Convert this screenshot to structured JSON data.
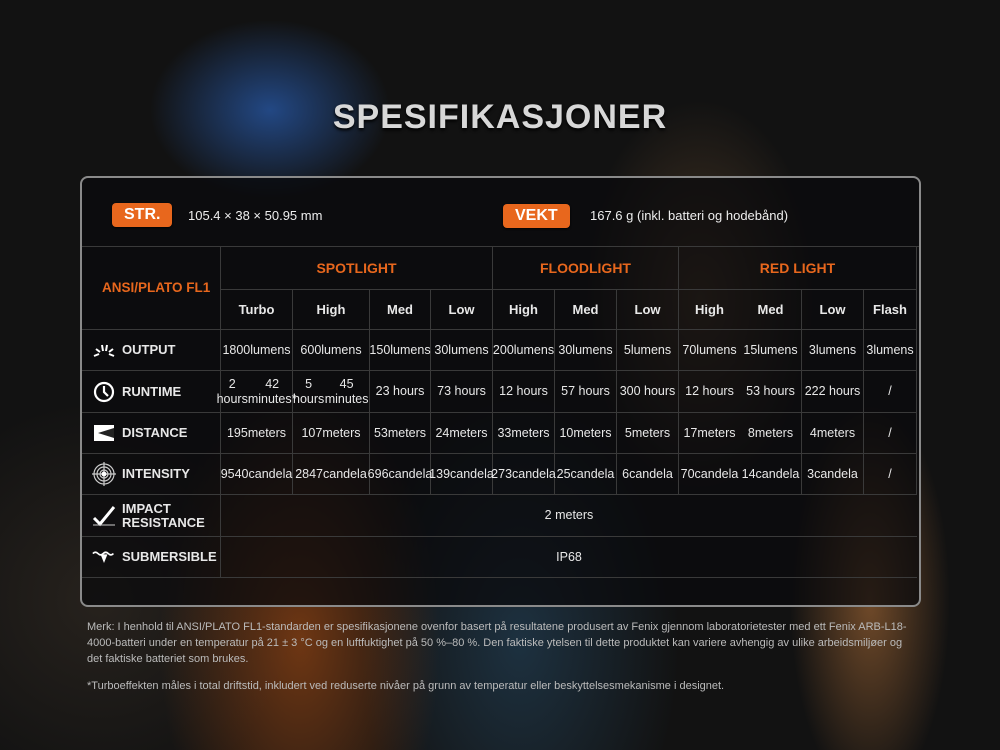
{
  "title": "SPESIFIKASJONER",
  "size": {
    "label": "STR.",
    "value": "105.4 × 38 × 50.95 mm"
  },
  "weight": {
    "label": "VEKT",
    "value": "167.6 g (inkl. batteri og hodebånd)"
  },
  "table": {
    "standard": [
      "ANSI/",
      "PLATO FL1"
    ],
    "groups": [
      "SPOTLIGHT",
      "FLOODLIGHT",
      "RED LIGHT"
    ],
    "modes": [
      "Turbo",
      "High",
      "Med",
      "Low",
      "High",
      "Med",
      "Low",
      "High",
      "Med",
      "Low",
      "Flash"
    ],
    "rows": [
      {
        "label": "OUTPUT",
        "icon": "output-burst-icon",
        "values": [
          [
            "1800",
            "lumens"
          ],
          [
            "600",
            "lumens"
          ],
          [
            "150",
            "lumens"
          ],
          [
            "30",
            "lumens"
          ],
          [
            "200",
            "lumens"
          ],
          [
            "30",
            "lumens"
          ],
          [
            "5",
            "lumens"
          ],
          [
            "70",
            "lumens"
          ],
          [
            "15",
            "lumens"
          ],
          [
            "3",
            "lumens"
          ],
          [
            "3",
            "lumens"
          ]
        ]
      },
      {
        "label": "RUNTIME",
        "icon": "clock-icon",
        "values": [
          [
            "2 hours",
            "42 minutes*"
          ],
          [
            "5 hours",
            "45 minutes"
          ],
          [
            "23 hours"
          ],
          [
            "73 hours"
          ],
          [
            "12 hours"
          ],
          [
            "57 hours"
          ],
          [
            "300 hours"
          ],
          [
            "12 hours"
          ],
          [
            "53 hours"
          ],
          [
            "222 hours"
          ],
          [
            "/"
          ]
        ]
      },
      {
        "label": "DISTANCE",
        "icon": "beam-distance-icon",
        "values": [
          [
            "195",
            "meters"
          ],
          [
            "107",
            "meters"
          ],
          [
            "53",
            "meters"
          ],
          [
            "24",
            "meters"
          ],
          [
            "33",
            "meters"
          ],
          [
            "10",
            "meters"
          ],
          [
            "5",
            "meters"
          ],
          [
            "17",
            "meters"
          ],
          [
            "8",
            "meters"
          ],
          [
            "4",
            "meters"
          ],
          [
            "/"
          ]
        ]
      },
      {
        "label": "INTENSITY",
        "icon": "target-icon",
        "values": [
          [
            "9540",
            "candela"
          ],
          [
            "2847",
            "candela"
          ],
          [
            "696",
            "candela"
          ],
          [
            "139",
            "candela"
          ],
          [
            "273",
            "candela"
          ],
          [
            "25",
            "candela"
          ],
          [
            "6",
            "candela"
          ],
          [
            "70",
            "candela"
          ],
          [
            "14",
            "candela"
          ],
          [
            "3",
            "candela"
          ],
          [
            "/"
          ]
        ]
      }
    ],
    "impact": {
      "label": "IMPACT RESISTANCE",
      "value": "2 meters"
    },
    "submersible": {
      "label": "SUBMERSIBLE",
      "value": "IP68"
    }
  },
  "notes": [
    "Merk: I henhold til ANSI/PLATO FL1-standarden er spesifikasjonene ovenfor basert på resultatene produsert av Fenix gjennom laboratorietester med ett Fenix ARB-L18-4000-batteri under en temperatur på 21 ± 3 °C og en luftfuktighet på 50 %–80 %. Den faktiske ytelsen til dette produktet kan variere avhengig av ulike arbeidsmiljøer og det faktiske batteriet som brukes.",
    "*Turboeffekten måles i total driftstid, inkludert ved reduserte nivåer på grunn av temperatur eller beskyttelsesmekanisme i designet."
  ],
  "colors": {
    "accent": "#e8671d"
  }
}
